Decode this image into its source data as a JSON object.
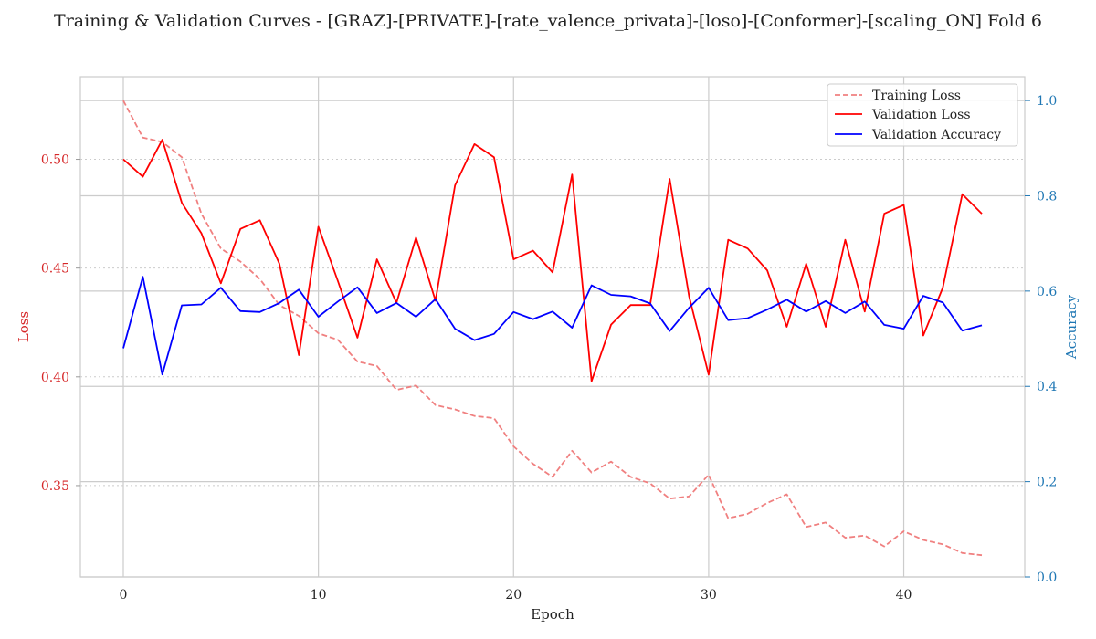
{
  "chart_data": {
    "type": "line",
    "title": "Training & Validation Curves - [GRAZ]-[PRIVATE]-[rate_valence_privata]-[loso]-[Conformer]-[scaling_ON] Fold 6",
    "xlabel": "Epoch",
    "ylabel_left": "Loss",
    "ylabel_right": "Accuracy",
    "x": [
      0,
      1,
      2,
      3,
      4,
      5,
      6,
      7,
      8,
      9,
      10,
      11,
      12,
      13,
      14,
      15,
      16,
      17,
      18,
      19,
      20,
      21,
      22,
      23,
      24,
      25,
      26,
      27,
      28,
      29,
      30,
      31,
      32,
      33,
      34,
      35,
      36,
      37,
      38,
      39,
      40,
      41,
      42,
      43,
      44
    ],
    "xlim": [
      -2.2,
      46.2
    ],
    "ylim_left": [
      0.308,
      0.538
    ],
    "ylim_right": [
      0.0,
      1.05
    ],
    "xticks": [
      0,
      10,
      20,
      30,
      40
    ],
    "xtick_labels": [
      "0",
      "10",
      "20",
      "30",
      "40"
    ],
    "yticks_left": [
      0.35,
      0.4,
      0.45,
      0.5
    ],
    "ytick_left_labels": [
      "0.35",
      "0.40",
      "0.45",
      "0.50"
    ],
    "yticks_right": [
      0.0,
      0.2,
      0.4,
      0.6,
      0.8,
      1.0
    ],
    "ytick_right_labels": [
      "0.0",
      "0.2",
      "0.4",
      "0.6",
      "0.8",
      "1.0"
    ],
    "legend_position": "top-right",
    "grid": true,
    "series": [
      {
        "name": "Training Loss",
        "axis": "left",
        "style": "dashed",
        "color": "#f08080",
        "values": [
          0.527,
          0.51,
          0.508,
          0.501,
          0.475,
          0.459,
          0.453,
          0.445,
          0.433,
          0.428,
          0.42,
          0.417,
          0.407,
          0.405,
          0.394,
          0.396,
          0.387,
          0.385,
          0.382,
          0.381,
          0.368,
          0.36,
          0.354,
          0.366,
          0.356,
          0.361,
          0.354,
          0.351,
          0.344,
          0.345,
          0.355,
          0.335,
          0.337,
          0.342,
          0.346,
          0.331,
          0.333,
          0.326,
          0.327,
          0.322,
          0.329,
          0.325,
          0.323,
          0.319,
          0.318
        ]
      },
      {
        "name": "Validation Loss",
        "axis": "left",
        "style": "solid",
        "color": "#ff0000",
        "values": [
          0.5,
          0.492,
          0.509,
          0.48,
          0.466,
          0.443,
          0.468,
          0.472,
          0.452,
          0.41,
          0.469,
          0.444,
          0.418,
          0.454,
          0.434,
          0.464,
          0.435,
          0.488,
          0.507,
          0.501,
          0.454,
          0.458,
          0.448,
          0.493,
          0.398,
          0.424,
          0.433,
          0.433,
          0.491,
          0.437,
          0.401,
          0.463,
          0.459,
          0.449,
          0.423,
          0.452,
          0.423,
          0.463,
          0.43,
          0.475,
          0.479,
          0.419,
          0.441,
          0.484,
          0.475
        ]
      },
      {
        "name": "Validation Accuracy",
        "axis": "right",
        "style": "solid",
        "color": "#0000ff",
        "values": [
          0.48,
          0.63,
          0.425,
          0.57,
          0.572,
          0.607,
          0.558,
          0.556,
          0.575,
          0.603,
          0.546,
          0.578,
          0.608,
          0.554,
          0.575,
          0.546,
          0.583,
          0.521,
          0.497,
          0.51,
          0.556,
          0.541,
          0.557,
          0.523,
          0.612,
          0.592,
          0.589,
          0.574,
          0.516,
          0.565,
          0.607,
          0.539,
          0.543,
          0.561,
          0.582,
          0.557,
          0.579,
          0.554,
          0.578,
          0.529,
          0.521,
          0.59,
          0.576,
          0.517,
          0.528
        ]
      }
    ],
    "colors": {
      "left_axis": "#d62728",
      "right_axis": "#1f77b4",
      "grid": "#cccccc"
    }
  }
}
